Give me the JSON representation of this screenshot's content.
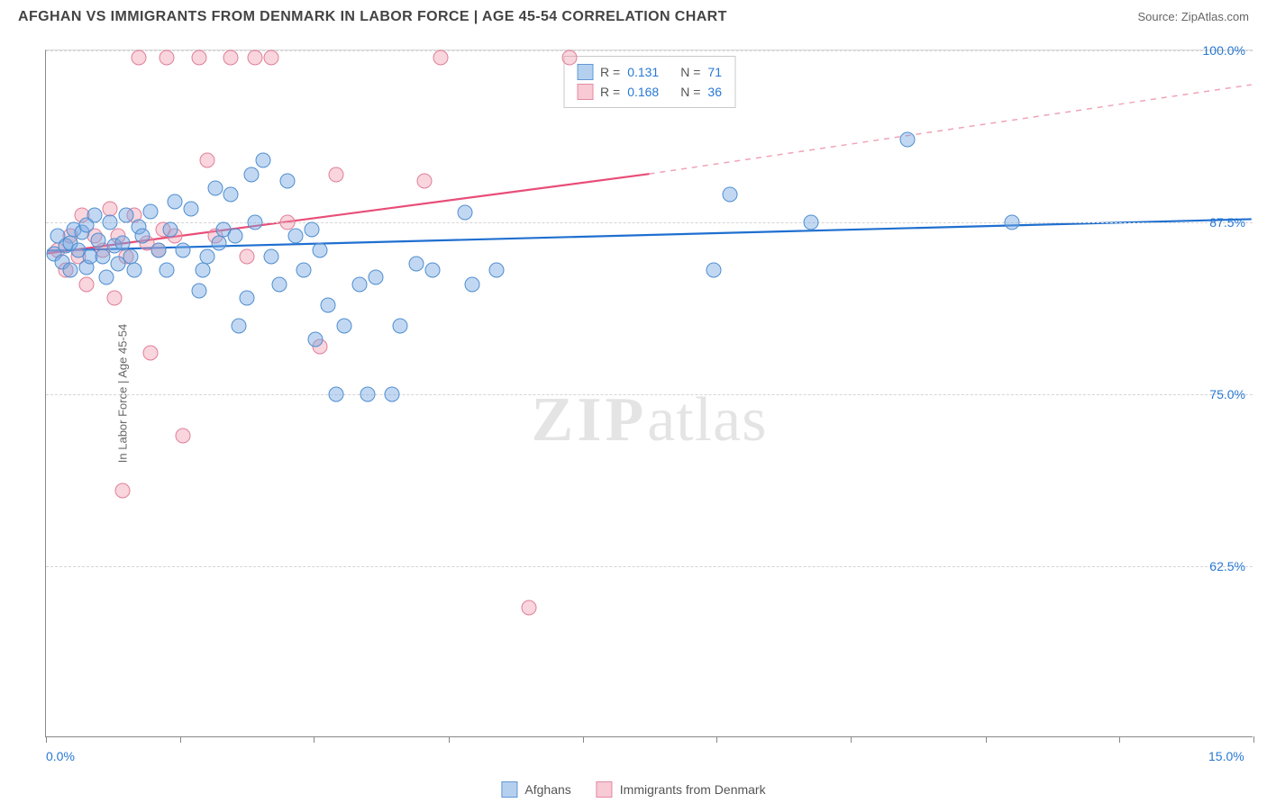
{
  "header": {
    "title": "AFGHAN VS IMMIGRANTS FROM DENMARK IN LABOR FORCE | AGE 45-54 CORRELATION CHART",
    "source_label": "Source: ZipAtlas.com"
  },
  "chart": {
    "type": "scatter",
    "ylabel": "In Labor Force | Age 45-54",
    "xlim": [
      0,
      15
    ],
    "ylim": [
      50,
      100
    ],
    "xtick_positions": [
      0,
      1.67,
      3.33,
      5.0,
      6.67,
      8.33,
      10.0,
      11.67,
      13.33,
      15.0
    ],
    "xtick_labels": {
      "0": "0.0%",
      "15": "15.0%"
    },
    "ytick_positions": [
      62.5,
      75.0,
      87.5,
      100.0
    ],
    "ytick_labels": [
      "62.5%",
      "75.0%",
      "87.5%",
      "100.0%"
    ],
    "grid_color": "#d5d5d5",
    "background_color": "#ffffff",
    "axis_color": "#888888",
    "series": {
      "blue": {
        "label": "Afghans",
        "color_fill": "rgba(120,169,226,0.45)",
        "color_stroke": "#4f8ed0",
        "R": "0.131",
        "N": "71",
        "points": [
          [
            0.1,
            85.2
          ],
          [
            0.15,
            86.5
          ],
          [
            0.2,
            84.6
          ],
          [
            0.25,
            85.8
          ],
          [
            0.3,
            86.0
          ],
          [
            0.35,
            87.0
          ],
          [
            0.3,
            84.0
          ],
          [
            0.4,
            85.5
          ],
          [
            0.45,
            86.8
          ],
          [
            0.5,
            84.2
          ],
          [
            0.55,
            85.0
          ],
          [
            0.5,
            87.3
          ],
          [
            0.6,
            88.0
          ],
          [
            0.65,
            86.2
          ],
          [
            0.7,
            85.0
          ],
          [
            0.75,
            83.5
          ],
          [
            0.8,
            87.5
          ],
          [
            0.85,
            85.8
          ],
          [
            0.9,
            84.5
          ],
          [
            0.95,
            86.0
          ],
          [
            1.0,
            88.0
          ],
          [
            1.05,
            85.0
          ],
          [
            1.1,
            84.0
          ],
          [
            1.15,
            87.2
          ],
          [
            1.2,
            86.5
          ],
          [
            1.3,
            88.3
          ],
          [
            1.4,
            85.5
          ],
          [
            1.5,
            84.0
          ],
          [
            1.55,
            87.0
          ],
          [
            1.6,
            89.0
          ],
          [
            1.7,
            85.5
          ],
          [
            1.8,
            88.5
          ],
          [
            1.9,
            82.5
          ],
          [
            1.95,
            84.0
          ],
          [
            2.0,
            85.0
          ],
          [
            2.1,
            90.0
          ],
          [
            2.15,
            86.0
          ],
          [
            2.2,
            87.0
          ],
          [
            2.3,
            89.5
          ],
          [
            2.35,
            86.5
          ],
          [
            2.4,
            80.0
          ],
          [
            2.5,
            82.0
          ],
          [
            2.55,
            91.0
          ],
          [
            2.6,
            87.5
          ],
          [
            2.7,
            92.0
          ],
          [
            2.8,
            85.0
          ],
          [
            2.9,
            83.0
          ],
          [
            3.0,
            90.5
          ],
          [
            3.1,
            86.5
          ],
          [
            3.2,
            84.0
          ],
          [
            3.3,
            87.0
          ],
          [
            3.35,
            79.0
          ],
          [
            3.4,
            85.5
          ],
          [
            3.5,
            81.5
          ],
          [
            3.6,
            75.0
          ],
          [
            3.7,
            80.0
          ],
          [
            3.9,
            83.0
          ],
          [
            4.0,
            75.0
          ],
          [
            4.1,
            83.5
          ],
          [
            4.3,
            75.0
          ],
          [
            4.4,
            80.0
          ],
          [
            4.6,
            84.5
          ],
          [
            4.8,
            84.0
          ],
          [
            5.2,
            88.2
          ],
          [
            5.3,
            83.0
          ],
          [
            5.6,
            84.0
          ],
          [
            8.3,
            84.0
          ],
          [
            8.5,
            89.5
          ],
          [
            9.5,
            87.5
          ],
          [
            10.7,
            93.5
          ],
          [
            12.0,
            87.5
          ]
        ],
        "trend": {
          "x0": 0,
          "y0": 85.4,
          "x1": 15,
          "y1": 87.7,
          "color": "#1f6fd0",
          "width": 2.2
        }
      },
      "pink": {
        "label": "Immigrants from Denmark",
        "color_fill": "rgba(240,150,170,0.4)",
        "color_stroke": "#e07f98",
        "R": "0.168",
        "N": "36",
        "points": [
          [
            0.15,
            85.5
          ],
          [
            0.25,
            84.0
          ],
          [
            0.3,
            86.5
          ],
          [
            0.4,
            85.0
          ],
          [
            0.45,
            88.0
          ],
          [
            0.5,
            83.0
          ],
          [
            0.6,
            86.5
          ],
          [
            0.7,
            85.5
          ],
          [
            0.8,
            88.5
          ],
          [
            0.85,
            82.0
          ],
          [
            0.9,
            86.5
          ],
          [
            1.0,
            85.0
          ],
          [
            1.1,
            88.0
          ],
          [
            1.25,
            86.0
          ],
          [
            1.3,
            78.0
          ],
          [
            1.4,
            85.5
          ],
          [
            1.45,
            87.0
          ],
          [
            1.5,
            99.5
          ],
          [
            1.6,
            86.5
          ],
          [
            1.7,
            72.0
          ],
          [
            1.9,
            99.5
          ],
          [
            2.0,
            92.0
          ],
          [
            2.1,
            86.5
          ],
          [
            2.3,
            99.5
          ],
          [
            2.5,
            85.0
          ],
          [
            2.6,
            99.5
          ],
          [
            2.8,
            99.5
          ],
          [
            3.0,
            87.5
          ],
          [
            3.4,
            78.5
          ],
          [
            3.6,
            91.0
          ],
          [
            4.7,
            90.5
          ],
          [
            4.9,
            99.5
          ],
          [
            6.0,
            59.5
          ],
          [
            6.5,
            99.5
          ],
          [
            0.95,
            68.0
          ],
          [
            1.15,
            99.5
          ]
        ],
        "trend_solid": {
          "x0": 0,
          "y0": 85.2,
          "x1": 7.5,
          "y1": 91.0,
          "color": "#e84d78",
          "width": 2.2
        },
        "trend_dashed": {
          "x0": 7.5,
          "y0": 91.0,
          "x1": 15,
          "y1": 97.5,
          "color": "#f0a3b6",
          "width": 1.5
        }
      }
    },
    "watermark": {
      "bold": "ZIP",
      "rest": "atlas"
    }
  },
  "legend": {
    "stats_rows": [
      {
        "swatch": "blue",
        "R_label": "R =",
        "R": "0.131",
        "N_label": "N =",
        "N": "71"
      },
      {
        "swatch": "pink",
        "R_label": "R =",
        "R": "0.168",
        "N_label": "N =",
        "N": "36"
      }
    ],
    "bottom": [
      {
        "swatch": "blue",
        "label": "Afghans"
      },
      {
        "swatch": "pink",
        "label": "Immigrants from Denmark"
      }
    ]
  }
}
